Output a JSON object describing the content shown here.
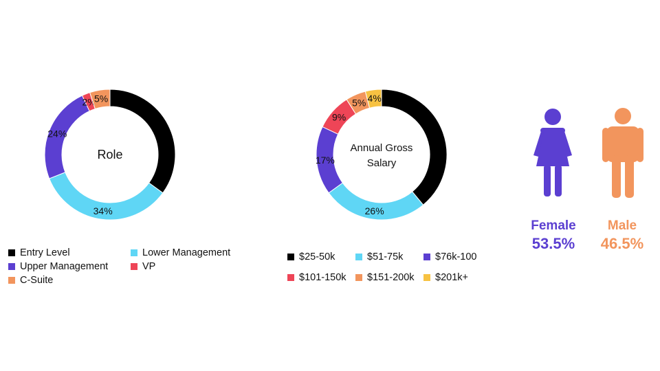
{
  "colors": {
    "black": "#000000",
    "light_blue": "#5fd6f5",
    "purple": "#5b3fd1",
    "red": "#ee4557",
    "orange": "#f2955d",
    "yellow": "#f7c242",
    "female": "#5b3fd1",
    "male": "#f2955d"
  },
  "chart_data": [
    {
      "type": "pie",
      "donut": true,
      "title": "Role",
      "categories": [
        "Entry Level",
        "Lower Management",
        "Upper Management",
        "VP",
        "C-Suite"
      ],
      "values": [
        35,
        34,
        24,
        2,
        5
      ],
      "value_labels": [
        "",
        "34%",
        "24%",
        "2%",
        "5%"
      ],
      "colors": [
        "#000000",
        "#5fd6f5",
        "#5b3fd1",
        "#ee4557",
        "#f2955d"
      ],
      "legend": [
        "Entry Level",
        "Lower Management",
        "Upper Management",
        "VP",
        "C-Suite"
      ]
    },
    {
      "type": "pie",
      "donut": true,
      "title": "Annual Gross Salary",
      "title_lines": [
        "Annual Gross",
        "Salary"
      ],
      "categories": [
        "$25-50k",
        "$51-75k",
        "$76k-100",
        "$101-150k",
        "$151-200k",
        "$201k+"
      ],
      "values": [
        39,
        26,
        17,
        9,
        5,
        4
      ],
      "value_labels": [
        "",
        "26%",
        "17%",
        "9%",
        "5%",
        "4%"
      ],
      "colors": [
        "#000000",
        "#5fd6f5",
        "#5b3fd1",
        "#ee4557",
        "#f2955d",
        "#f7c242"
      ],
      "legend": [
        "$25-50k",
        "$51-75k",
        "$76k-100",
        "$101-150k",
        "$151-200k",
        "$201k+"
      ]
    }
  ],
  "gender": {
    "female_label": "Female",
    "female_pct": "53.5%",
    "female_icon": "female-person-icon",
    "male_label": "Male",
    "male_pct": "46.5%",
    "male_icon": "male-person-icon"
  }
}
